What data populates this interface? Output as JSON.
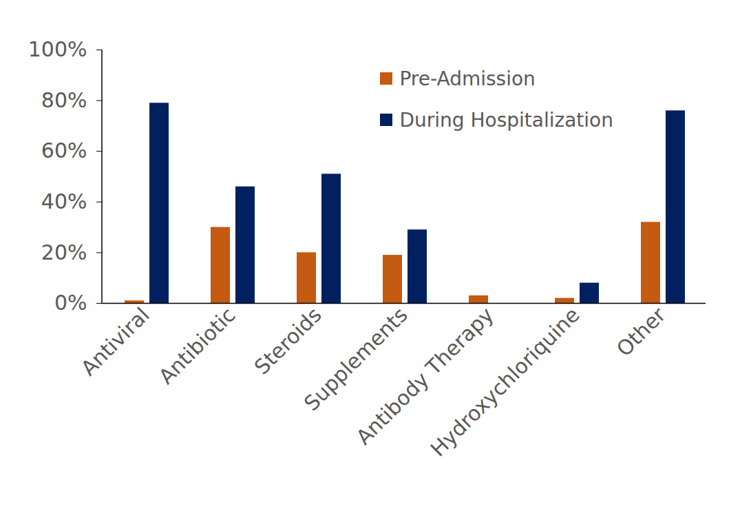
{
  "chart_data": {
    "type": "bar",
    "categories": [
      "Antiviral",
      "Antibiotic",
      "Steroids",
      "Supplements",
      "Antibody Therapy",
      "Hydroxychloriquine",
      "Other"
    ],
    "series": [
      {
        "name": "Pre-Admission",
        "color": "#c55a11",
        "values": [
          1,
          30,
          20,
          19,
          3,
          2,
          32
        ]
      },
      {
        "name": "During Hospitalization",
        "color": "#002060",
        "values": [
          79,
          46,
          51,
          29,
          0,
          8,
          76
        ]
      }
    ],
    "ylim": [
      0,
      100
    ],
    "yticks": [
      {
        "value": 0,
        "label": "0%"
      },
      {
        "value": 20,
        "label": "20%"
      },
      {
        "value": 40,
        "label": "40%"
      },
      {
        "value": 60,
        "label": "60%"
      },
      {
        "value": 80,
        "label": "80%"
      },
      {
        "value": 100,
        "label": "100%"
      }
    ],
    "grid": false,
    "legend": "upper right"
  }
}
